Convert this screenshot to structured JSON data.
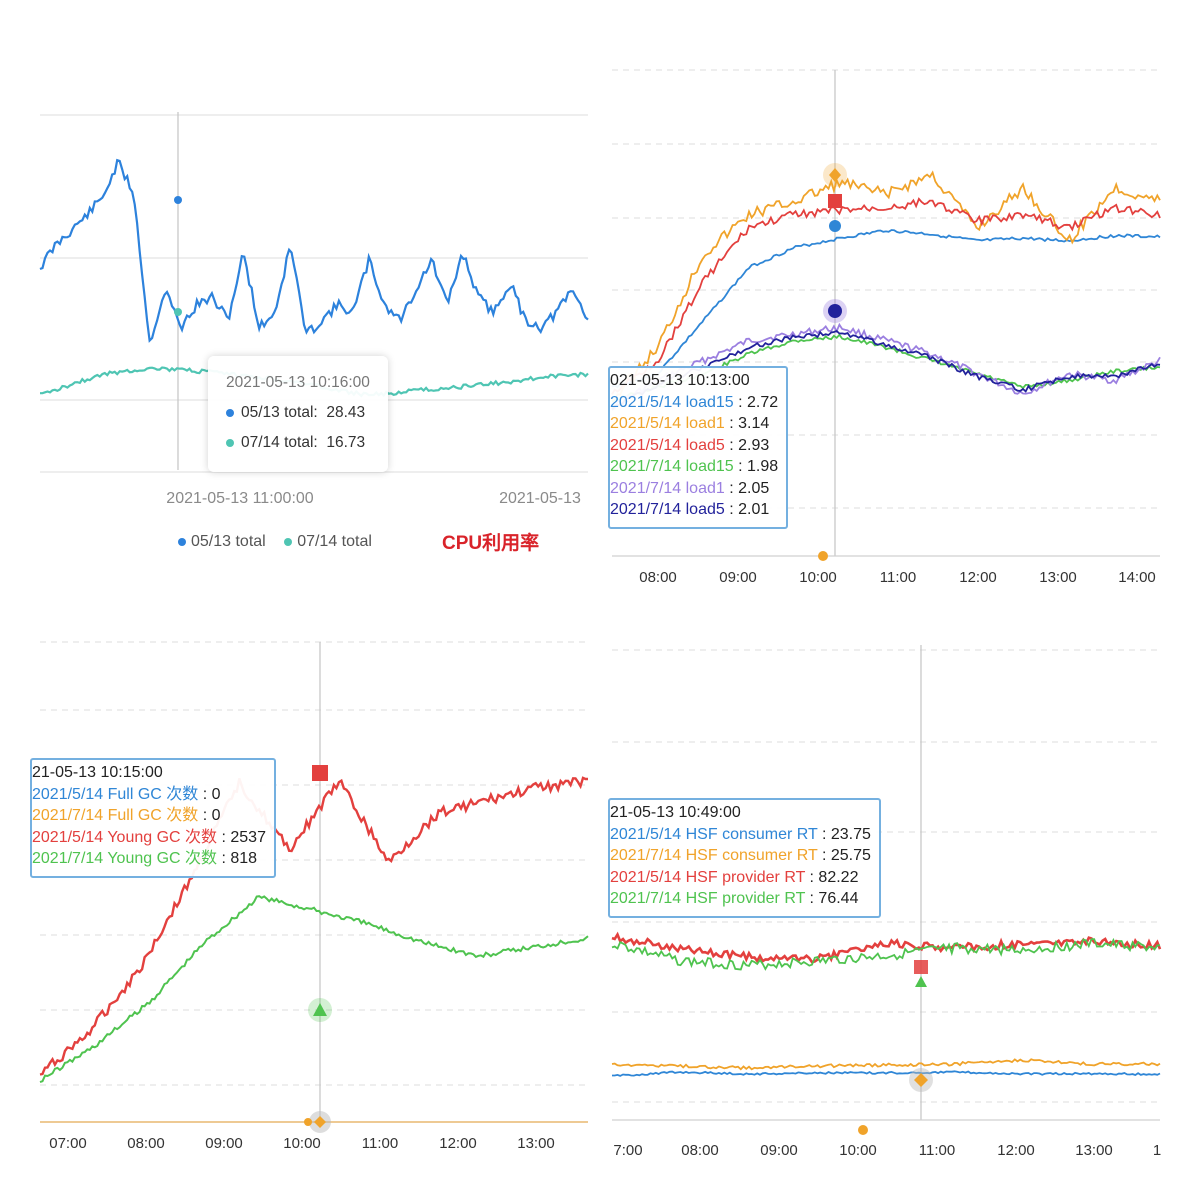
{
  "chart_data": [
    {
      "type": "line",
      "title": "CPU利用率",
      "x_ticks": [
        "2021-05-13 11:00:00",
        "2021-05-13"
      ],
      "series": [
        {
          "name": "05/13 total",
          "color": "#2d82dc",
          "values": [
            23.5,
            25.0,
            26.0,
            27.0,
            28.2,
            30.5,
            28.4,
            18.5,
            22.0,
            19.5,
            21.0,
            21.5,
            20.0,
            24.5,
            19.5,
            20.5,
            25.0,
            19.0,
            20.0,
            21.0,
            20.5,
            24.0,
            21.0,
            20.0,
            22.0,
            24.0,
            21.0,
            24.5,
            21.5,
            20.5,
            22.5,
            20.0,
            19.5,
            20.5,
            22.0,
            20.0
          ]
        },
        {
          "name": "07/14 total",
          "color": "#4fc5b3",
          "values": [
            15.0,
            15.5,
            16.0,
            16.4,
            16.6,
            16.8,
            16.7,
            16.6,
            16.5,
            16.3,
            16.2,
            16.0,
            15.8,
            15.5,
            15.2,
            15.0,
            15.1,
            15.3,
            15.4,
            15.5,
            15.7,
            15.8,
            16.0,
            16.2,
            16.3,
            16.4
          ]
        }
      ],
      "tooltip": {
        "title": "2021-05-13 10:16:00",
        "rows": [
          {
            "label": "05/13 total:",
            "value": "28.43",
            "color": "#2d82dc"
          },
          {
            "label": "07/14 total:",
            "value": "16.73",
            "color": "#4fc5b3"
          }
        ]
      }
    },
    {
      "type": "line",
      "x_ticks": [
        "08:00",
        "09:00",
        "10:00",
        "11:00",
        "12:00",
        "13:00",
        "14:00"
      ],
      "series": [
        {
          "name": "2021/5/14 load15",
          "color": "#2f86d6",
          "values": [
            1.6,
            1.7,
            2.1,
            2.5,
            2.65,
            2.72,
            2.78,
            2.75,
            2.7,
            2.72,
            2.7,
            2.74,
            2.73
          ]
        },
        {
          "name": "2021/5/14 load1",
          "color": "#f0a32a",
          "values": [
            1.5,
            1.9,
            2.6,
            2.9,
            3.0,
            3.14,
            3.05,
            3.2,
            2.8,
            3.1,
            2.7,
            3.1,
            3.0
          ]
        },
        {
          "name": "2021/5/14 load5",
          "color": "#e3403e",
          "values": [
            1.55,
            1.8,
            2.4,
            2.8,
            2.9,
            2.93,
            2.95,
            3.0,
            2.85,
            2.9,
            2.8,
            2.95,
            2.9
          ]
        },
        {
          "name": "2021/7/14 load15",
          "color": "#4fc34f",
          "values": [
            1.5,
            1.6,
            1.7,
            1.85,
            1.95,
            1.98,
            1.9,
            1.8,
            1.7,
            1.6,
            1.65,
            1.72,
            1.75
          ]
        },
        {
          "name": "2021/7/14 load1",
          "color": "#9b7fe0",
          "values": [
            1.45,
            1.65,
            1.8,
            1.95,
            2.0,
            2.05,
            1.95,
            1.85,
            1.7,
            1.55,
            1.7,
            1.65,
            1.8
          ]
        },
        {
          "name": "2021/7/14 load5",
          "color": "#22229b",
          "values": [
            1.45,
            1.62,
            1.75,
            1.9,
            1.98,
            2.01,
            1.92,
            1.82,
            1.68,
            1.58,
            1.68,
            1.68,
            1.78
          ]
        }
      ],
      "tooltip": {
        "title": "021-05-13 10:13:00",
        "rows": [
          {
            "label": "2021/5/14 load15",
            "value": "2.72",
            "color": "#2f86d6"
          },
          {
            "label": "2021/5/14 load1",
            "value": "3.14",
            "color": "#f0a32a"
          },
          {
            "label": "2021/5/14 load5",
            "value": "2.93",
            "color": "#e3403e"
          },
          {
            "label": "2021/7/14 load15",
            "value": "1.98",
            "color": "#4fc34f"
          },
          {
            "label": "2021/7/14 load1",
            "value": "2.05",
            "color": "#9b7fe0"
          },
          {
            "label": "2021/7/14 load5",
            "value": "2.01",
            "color": "#22229b"
          }
        ]
      }
    },
    {
      "type": "line",
      "x_ticks": [
        "07:00",
        "08:00",
        "09:00",
        "10:00",
        "11:00",
        "12:00",
        "13:00"
      ],
      "series": [
        {
          "name": "2021/5/14 Full GC 次数",
          "color": "#2f86d6",
          "values": [
            0,
            0,
            0,
            0,
            0,
            0,
            0
          ]
        },
        {
          "name": "2021/7/14 Full GC 次数",
          "color": "#f0a32a",
          "values": [
            0,
            0,
            0,
            0,
            0,
            0,
            0
          ]
        },
        {
          "name": "2021/5/14 Young GC 次数",
          "color": "#e3403e",
          "values": [
            200,
            550,
            1050,
            1750,
            2537,
            2000,
            2550,
            1900,
            2300,
            2400,
            2500,
            2550
          ]
        },
        {
          "name": "2021/7/14 Young GC 次数",
          "color": "#4fc34f",
          "values": [
            20,
            170,
            360,
            620,
            818,
            760,
            700,
            620,
            560,
            600,
            640
          ]
        }
      ],
      "tooltip": {
        "title": "21-05-13 10:15:00",
        "rows": [
          {
            "label": "2021/5/14 Full GC 次数",
            "value": "0",
            "color": "#2f86d6"
          },
          {
            "label": "2021/7/14 Full GC 次数",
            "value": "0",
            "color": "#f0a32a"
          },
          {
            "label": "2021/5/14 Young GC 次数",
            "value": "2537",
            "color": "#e3403e"
          },
          {
            "label": "2021/7/14 Young GC 次数",
            "value": "818",
            "color": "#4fc34f"
          }
        ]
      }
    },
    {
      "type": "line",
      "x_ticks": [
        "7:00",
        "08:00",
        "09:00",
        "10:00",
        "11:00",
        "12:00",
        "13:00",
        "1"
      ],
      "series": [
        {
          "name": "2021/5/14 HSF consumer RT",
          "color": "#2f86d6",
          "values": [
            23,
            24,
            23.5,
            23.8,
            23.75,
            24,
            23.5,
            23.6,
            23.4
          ]
        },
        {
          "name": "2021/7/14 HSF consumer RT",
          "color": "#f0a32a",
          "values": [
            26,
            25.5,
            25,
            25.5,
            25.75,
            26,
            27,
            26,
            26
          ]
        },
        {
          "name": "2021/5/14 HSF provider RT",
          "color": "#e3403e",
          "values": [
            85,
            80,
            76,
            75,
            82.22,
            80,
            82,
            83,
            81
          ]
        },
        {
          "name": "2021/7/14 HSF provider RT",
          "color": "#4fc34f",
          "values": [
            82,
            74,
            72,
            74,
            76.44,
            80,
            79,
            82,
            80
          ]
        }
      ],
      "tooltip": {
        "title": "21-05-13 10:49:00",
        "rows": [
          {
            "label": "2021/5/14 HSF consumer RT",
            "value": "23.75",
            "color": "#2f86d6"
          },
          {
            "label": "2021/7/14 HSF consumer RT",
            "value": "25.75",
            "color": "#f0a32a"
          },
          {
            "label": "2021/5/14 HSF provider RT",
            "value": "82.22",
            "color": "#e3403e"
          },
          {
            "label": "2021/7/14 HSF provider RT",
            "value": "76.44",
            "color": "#4fc34f"
          }
        ]
      }
    }
  ],
  "legend": [
    {
      "label": "05/13 total",
      "color": "#2d82dc"
    },
    {
      "label": "07/14 total",
      "color": "#4fc5b3"
    }
  ]
}
